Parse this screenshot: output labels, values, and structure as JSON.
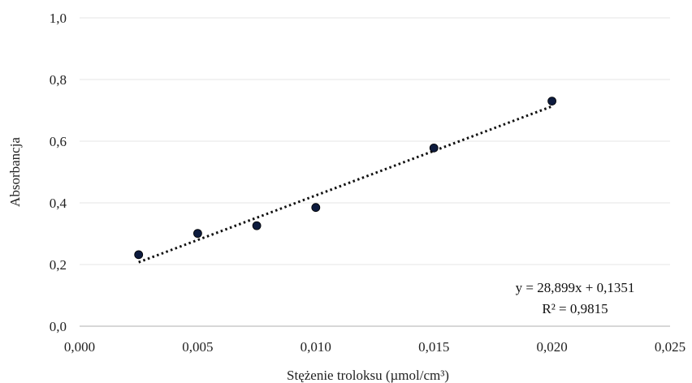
{
  "chart_data": {
    "type": "scatter",
    "xlabel": "Stężenie troloksu (µmol/cm³)",
    "ylabel": "Absorbancja",
    "xlim": [
      0.0,
      0.025
    ],
    "ylim": [
      0.0,
      1.0
    ],
    "x_ticks": [
      "0,000",
      "0,005",
      "0,010",
      "0,015",
      "0,020",
      "0,025"
    ],
    "y_ticks": [
      "0,0",
      "0,2",
      "0,4",
      "0,6",
      "0,8",
      "1,0"
    ],
    "x_tick_values": [
      0.0,
      0.005,
      0.01,
      0.015,
      0.02,
      0.025
    ],
    "y_tick_values": [
      0.0,
      0.2,
      0.4,
      0.6,
      0.8,
      1.0
    ],
    "grid": "horizontal",
    "series": [
      {
        "x": [
          0.0025,
          0.005,
          0.0075,
          0.01,
          0.015,
          0.02
        ],
        "y": [
          0.232,
          0.301,
          0.326,
          0.385,
          0.578,
          0.73
        ]
      }
    ],
    "trendline": {
      "type": "linear",
      "slope": 28.899,
      "intercept": 0.1351,
      "x_range": [
        0.0025,
        0.02
      ]
    },
    "annotations": [
      "y = 28,899x + 0,1351",
      "R² = 0,9815"
    ],
    "colors": {
      "point_fill": "#0d1b3e",
      "point_stroke": "#000000",
      "trendline": "#111111",
      "grid": "#e6e6e6",
      "axis": "#bfbfbf"
    }
  }
}
